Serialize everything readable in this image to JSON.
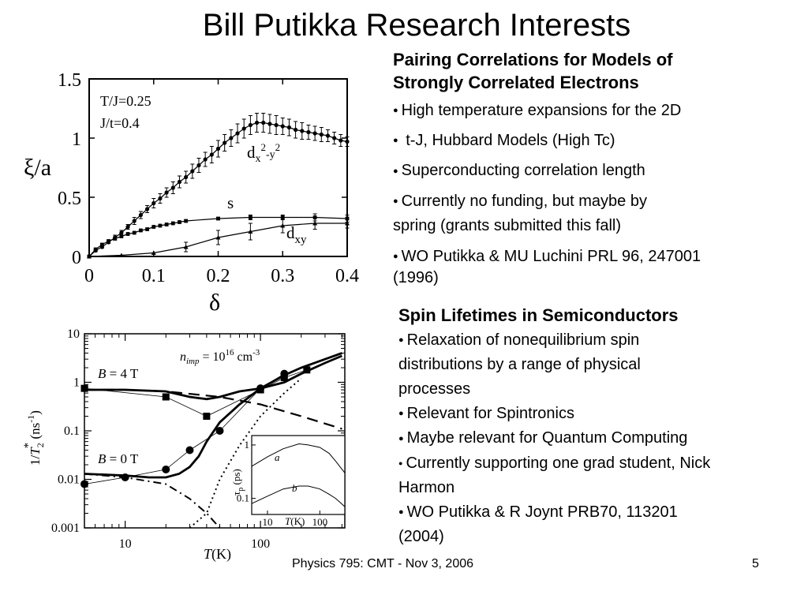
{
  "title": "Bill Putikka Research Interests",
  "section1": {
    "heading_line1": "Pairing Correlations for Models of",
    "heading_line2": "Strongly Correlated Electrons",
    "bullets": [
      "High temperature expansions for the 2D",
      " t-J, Hubbard Models (High Tc)",
      "Superconducting correlation length",
      "Currently no funding, but maybe by",
      "WO Putikka & MU Luchini PRL 96, 247001"
    ],
    "continuations": [
      "spring (grants submitted this fall)",
      "(1996)"
    ]
  },
  "section2": {
    "heading": "Spin Lifetimes in Semiconductors",
    "bullets": [
      "Relaxation of nonequilibrium spin",
      "Relevant for Spintronics",
      "Maybe relevant for Quantum Computing",
      "Currently supporting one grad student, Nick",
      "WO Putikka & R Joynt PRB70, 113201"
    ],
    "continuations": [
      "distributions by a range of physical",
      "processes",
      "Harmon",
      "(2004)"
    ]
  },
  "footer": {
    "text": "Physics 795: CMT - Nov 3, 2006",
    "page": "5"
  },
  "chart_data": [
    {
      "type": "scatter",
      "title": "",
      "xlabel": "δ",
      "ylabel": "ξ/a",
      "xlim": [
        0,
        0.4
      ],
      "ylim": [
        0,
        1.5
      ],
      "xticks": [
        "0",
        "0.1",
        "0.2",
        "0.3",
        "0.4"
      ],
      "yticks": [
        "0",
        "0.5",
        "1",
        "1.5"
      ],
      "annotations": [
        "T/J=0.25",
        "J/t=0.4"
      ],
      "series_labels": {
        "dx2y2_base": "d",
        "dx2y2_sub1": "x",
        "dx2y2_sup1": "2",
        "dx2y2_mid": "-y",
        "dx2y2_sup2": "2",
        "s": "s",
        "dxy_base": "d",
        "dxy_sub": "xy"
      },
      "series": [
        {
          "x": [
            0.0,
            0.01,
            0.02,
            0.03,
            0.04,
            0.05,
            0.06,
            0.07,
            0.08,
            0.09,
            0.1,
            0.11,
            0.12,
            0.13,
            0.14,
            0.15,
            0.16,
            0.17,
            0.18,
            0.19,
            0.2,
            0.21,
            0.22,
            0.23,
            0.24,
            0.25,
            0.26,
            0.27,
            0.28,
            0.29,
            0.3,
            0.31,
            0.32,
            0.33,
            0.34,
            0.35,
            0.36,
            0.37,
            0.38,
            0.39,
            0.4
          ],
          "y": [
            0.0,
            0.05,
            0.08,
            0.12,
            0.16,
            0.2,
            0.25,
            0.3,
            0.35,
            0.4,
            0.45,
            0.49,
            0.54,
            0.58,
            0.63,
            0.67,
            0.72,
            0.77,
            0.82,
            0.86,
            0.91,
            0.96,
            1.0,
            1.04,
            1.08,
            1.11,
            1.13,
            1.13,
            1.12,
            1.11,
            1.1,
            1.09,
            1.07,
            1.06,
            1.05,
            1.04,
            1.03,
            1.02,
            1.0,
            0.98,
            0.97
          ],
          "err": [
            0.0,
            0.01,
            0.01,
            0.01,
            0.02,
            0.02,
            0.02,
            0.03,
            0.03,
            0.03,
            0.04,
            0.04,
            0.04,
            0.05,
            0.05,
            0.05,
            0.06,
            0.06,
            0.06,
            0.07,
            0.07,
            0.07,
            0.07,
            0.08,
            0.08,
            0.08,
            0.08,
            0.08,
            0.08,
            0.08,
            0.07,
            0.07,
            0.07,
            0.07,
            0.06,
            0.06,
            0.06,
            0.05,
            0.05,
            0.05,
            0.04
          ]
        },
        {
          "x": [
            0.0,
            0.01,
            0.02,
            0.03,
            0.04,
            0.05,
            0.06,
            0.07,
            0.08,
            0.09,
            0.1,
            0.11,
            0.12,
            0.13,
            0.14,
            0.15,
            0.2,
            0.25,
            0.3,
            0.35,
            0.4
          ],
          "y": [
            0.0,
            0.06,
            0.1,
            0.13,
            0.15,
            0.17,
            0.19,
            0.2,
            0.22,
            0.23,
            0.25,
            0.26,
            0.27,
            0.28,
            0.29,
            0.3,
            0.32,
            0.33,
            0.33,
            0.33,
            0.32
          ],
          "err": [
            0,
            0,
            0,
            0,
            0,
            0,
            0,
            0,
            0,
            0,
            0,
            0,
            0,
            0,
            0,
            0,
            0.01,
            0.02,
            0.02,
            0.03,
            0.03
          ]
        },
        {
          "x": [
            0.0,
            0.05,
            0.1,
            0.15,
            0.2,
            0.25,
            0.3,
            0.35,
            0.4
          ],
          "y": [
            0.0,
            0.01,
            0.03,
            0.08,
            0.16,
            0.21,
            0.26,
            0.28,
            0.28
          ],
          "err": [
            0,
            0,
            0,
            0.04,
            0.06,
            0.07,
            0.06,
            0.05,
            0.04
          ]
        }
      ]
    },
    {
      "type": "line",
      "title": "",
      "xlabel_italic": "T",
      "xlabel_unit": "(K)",
      "log_x": true,
      "log_y": true,
      "xlim": [
        5,
        420
      ],
      "ylim": [
        0.001,
        10
      ],
      "xticks": [
        "10",
        "100"
      ],
      "yticks": [
        "0.001",
        "0.01",
        "0.1",
        "1",
        "10"
      ],
      "ylabel_parts": {
        "pre": "1/",
        "var": "T",
        "sub": "2",
        "sup": "*",
        "unit": " (ns",
        "unitsup": "-1",
        "close": ")"
      },
      "nimp_parts": {
        "n": "n",
        "sub": "imp",
        "eq": " = 10",
        "sup": "16",
        "unit": " cm",
        "unitsup": "-3"
      },
      "labels": {
        "B4": "B",
        "B4rest": " = 4 T",
        "B0": "B",
        "B0rest": " = 0 T"
      },
      "series_B4_squares": {
        "x": [
          5,
          20,
          40,
          100,
          150,
          220
        ],
        "y": [
          0.75,
          0.5,
          0.2,
          0.7,
          1.25,
          1.8
        ]
      },
      "series_B4_fit": {
        "x": [
          5,
          10,
          20,
          30,
          40,
          50,
          70,
          100,
          150,
          200,
          300,
          400
        ],
        "y": [
          0.7,
          0.7,
          0.65,
          0.5,
          0.45,
          0.5,
          0.65,
          0.75,
          1.0,
          1.5,
          2.5,
          3.5
        ]
      },
      "series_B0_circles": {
        "x": [
          5,
          10,
          20,
          30,
          50,
          100,
          150
        ],
        "y": [
          0.008,
          0.011,
          0.016,
          0.04,
          0.1,
          0.75,
          1.5
        ]
      },
      "series_B0_fit": {
        "x": [
          5,
          10,
          15,
          20,
          25,
          30,
          35,
          40,
          50,
          70,
          100,
          150,
          200,
          300,
          400
        ],
        "y": [
          0.013,
          0.012,
          0.011,
          0.011,
          0.013,
          0.018,
          0.03,
          0.06,
          0.15,
          0.35,
          0.75,
          1.4,
          2.0,
          3.0,
          4.0
        ]
      },
      "series_dashed": {
        "x": [
          5,
          10,
          20,
          50,
          100,
          200,
          400
        ],
        "y": [
          0.7,
          0.7,
          0.65,
          0.5,
          0.35,
          0.2,
          0.11
        ]
      },
      "series_dashdot": {
        "x": [
          5,
          10,
          20,
          30,
          40,
          50
        ],
        "y": [
          0.013,
          0.011,
          0.008,
          0.004,
          0.002,
          0.001
        ]
      },
      "series_dotted": {
        "x": [
          30,
          40,
          50,
          70,
          100,
          150,
          200
        ],
        "y": [
          0.001,
          0.002,
          0.01,
          0.05,
          0.2,
          0.6,
          1.2
        ]
      },
      "inset": {
        "ylabel_tau": "τ",
        "ylabel_sub": "p",
        "ylabel_unit": " (ps)",
        "xlabel_italic": "T",
        "xlabel_unit": "(K)",
        "xticks": [
          "10",
          "100"
        ],
        "yticks": [
          "0.1",
          "1"
        ],
        "curve_labels": [
          "a",
          "b"
        ],
        "xlim": [
          5,
          300
        ],
        "ylim": [
          0.05,
          1.5
        ],
        "curve_a": {
          "x": [
            5,
            10,
            20,
            40,
            60,
            100,
            150,
            200,
            300
          ],
          "y": [
            0.4,
            0.6,
            0.85,
            1.05,
            1.0,
            0.9,
            0.7,
            0.5,
            0.3
          ]
        },
        "curve_b": {
          "x": [
            5,
            10,
            20,
            40,
            60,
            100,
            150,
            200,
            300
          ],
          "y": [
            0.08,
            0.11,
            0.15,
            0.17,
            0.17,
            0.15,
            0.12,
            0.1,
            0.07
          ]
        }
      }
    }
  ]
}
